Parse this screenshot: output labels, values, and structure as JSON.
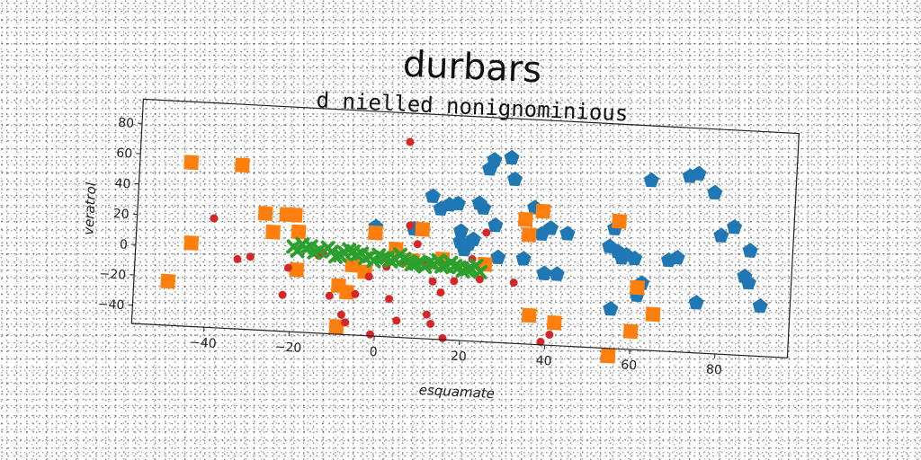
{
  "chart_data": {
    "type": "scatter",
    "title": "durbars",
    "subtitle": "d nielled nonignominious",
    "xlabel": "esquamate",
    "ylabel": "veratrol",
    "xlim": [
      -57,
      97
    ],
    "ylim": [
      -52,
      96
    ],
    "xticks": [
      -40,
      -20,
      0,
      20,
      40,
      60,
      80
    ],
    "yticks": [
      -40,
      -20,
      0,
      20,
      40,
      60,
      80
    ],
    "grid": false,
    "series": [
      {
        "color": "#1f77b4",
        "marker": "pentagon",
        "points": [
          [
            12,
            42
          ],
          [
            14,
            34
          ],
          [
            16,
            37
          ],
          [
            18,
            38
          ],
          [
            19,
            20
          ],
          [
            20,
            8
          ],
          [
            21,
            12
          ],
          [
            22,
            15
          ],
          [
            23,
            39
          ],
          [
            24,
            36
          ],
          [
            25,
            62
          ],
          [
            26,
            68
          ],
          [
            27,
            25
          ],
          [
            28,
            4
          ],
          [
            30,
            70
          ],
          [
            31,
            56
          ],
          [
            34,
            4
          ],
          [
            36,
            38
          ],
          [
            38,
            21
          ],
          [
            39,
            -5
          ],
          [
            40,
            25
          ],
          [
            42,
            -5
          ],
          [
            44,
            22
          ],
          [
            54,
            15
          ],
          [
            55,
            27
          ],
          [
            56,
            12
          ],
          [
            57,
            8
          ],
          [
            58,
            10
          ],
          [
            60,
            8
          ],
          [
            61,
            -16
          ],
          [
            62,
            -8
          ],
          [
            63,
            60
          ],
          [
            68,
            8
          ],
          [
            70,
            10
          ],
          [
            72,
            64
          ],
          [
            74,
            66
          ],
          [
            75,
            -19
          ],
          [
            78,
            54
          ],
          [
            80,
            26
          ],
          [
            83,
            32
          ],
          [
            86,
            0
          ],
          [
            87,
            17
          ],
          [
            87,
            -4
          ],
          [
            90,
            -19
          ],
          [
            55,
            -26
          ],
          [
            -1,
            20
          ],
          [
            8,
            20
          ],
          [
            19,
            13
          ]
        ]
      },
      {
        "color": "#ff7f0e",
        "marker": "square",
        "points": [
          [
            -45,
            56
          ],
          [
            -33,
            56
          ],
          [
            -44,
            3
          ],
          [
            -49,
            -23
          ],
          [
            -27,
            25
          ],
          [
            -25,
            13
          ],
          [
            -22,
            25
          ],
          [
            -20,
            25
          ],
          [
            -19,
            14
          ],
          [
            -19,
            -11
          ],
          [
            -9,
            -20
          ],
          [
            -7,
            -24
          ],
          [
            -9,
            -47
          ],
          [
            -6,
            -6
          ],
          [
            -3,
            -10
          ],
          [
            -1,
            16
          ],
          [
            4,
            6
          ],
          [
            8,
            -1
          ],
          [
            10,
            20
          ],
          [
            15,
            1
          ],
          [
            25,
            -1
          ],
          [
            34,
            30
          ],
          [
            35,
            20
          ],
          [
            36,
            -33
          ],
          [
            38,
            36
          ],
          [
            42,
            -37
          ],
          [
            55,
            -57
          ],
          [
            56,
            32
          ],
          [
            61,
            -11
          ],
          [
            60,
            -40
          ],
          [
            65,
            -28
          ]
        ]
      },
      {
        "color": "#d62728",
        "marker": "circle",
        "points": [
          [
            -39,
            20
          ],
          [
            -33,
            -6
          ],
          [
            -30,
            -4
          ],
          [
            -22,
            -28
          ],
          [
            -21,
            -10
          ],
          [
            -13,
            1
          ],
          [
            -11,
            -27
          ],
          [
            -8,
            -39
          ],
          [
            -7,
            -44
          ],
          [
            -5,
            -25
          ],
          [
            -2,
            -13
          ],
          [
            -1,
            -51
          ],
          [
            2,
            -6
          ],
          [
            3,
            -27
          ],
          [
            5,
            -41
          ],
          [
            6,
            77
          ],
          [
            7,
            22
          ],
          [
            9,
            10
          ],
          [
            11,
            -1
          ],
          [
            12,
            -4
          ],
          [
            12,
            -36
          ],
          [
            13,
            -14
          ],
          [
            13,
            -42
          ],
          [
            15,
            -21
          ],
          [
            16,
            -51
          ],
          [
            18,
            -13
          ],
          [
            22,
            2
          ],
          [
            24,
            -11
          ],
          [
            25,
            20
          ],
          [
            32,
            -12
          ],
          [
            39,
            -50
          ],
          [
            41,
            -45
          ],
          [
            6,
            -2
          ],
          [
            -14,
            -1
          ]
        ]
      },
      {
        "color": "#2ca02c",
        "marker": "x",
        "points": [
          [
            -20,
            4
          ],
          [
            -17,
            3.4
          ],
          [
            -14,
            2.8
          ],
          [
            -11,
            2.2
          ],
          [
            -8,
            1.6
          ],
          [
            -5,
            1
          ],
          [
            -2,
            0.4
          ],
          [
            1,
            -0.2
          ],
          [
            4,
            -0.8
          ],
          [
            7,
            -1.4
          ],
          [
            10,
            -2
          ],
          [
            13,
            -2.6
          ],
          [
            16,
            -3.2
          ],
          [
            19,
            -3.8
          ],
          [
            22,
            -4.4
          ],
          [
            -18,
            6
          ],
          [
            -12,
            4.5
          ],
          [
            -6,
            3
          ],
          [
            0,
            1.5
          ],
          [
            6,
            0
          ],
          [
            12,
            -1.5
          ],
          [
            18,
            -3
          ],
          [
            -15,
            1
          ],
          [
            -9,
            0
          ],
          [
            -3,
            -1
          ],
          [
            3,
            -2
          ],
          [
            9,
            -3
          ],
          [
            15,
            -4
          ],
          [
            21,
            -5
          ],
          [
            24,
            -6
          ],
          [
            -19,
            1.5
          ],
          [
            -16,
            5
          ],
          [
            -10,
            -1
          ],
          [
            -4,
            2
          ],
          [
            2,
            0
          ],
          [
            8,
            -3.5
          ],
          [
            14,
            0
          ],
          [
            20,
            -6
          ],
          [
            23,
            -2
          ],
          [
            11,
            -4.5
          ],
          [
            -7,
            4
          ],
          [
            5,
            2.5
          ],
          [
            17,
            -1
          ],
          [
            -1,
            -2.5
          ]
        ]
      }
    ]
  }
}
